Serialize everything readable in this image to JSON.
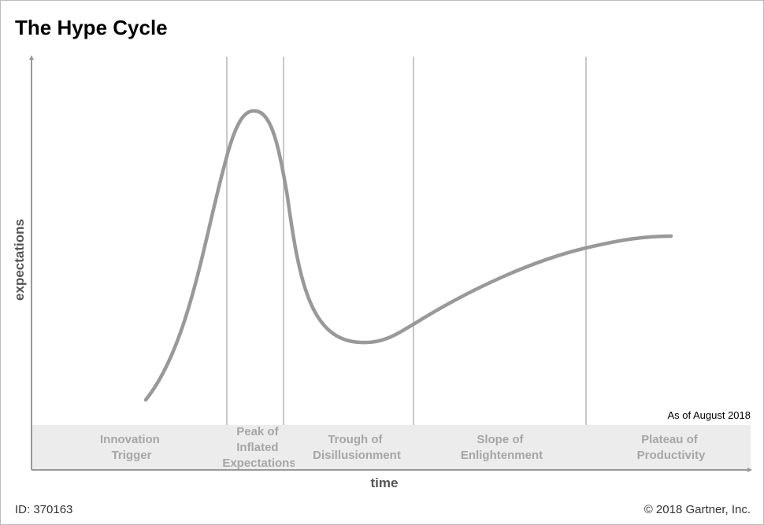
{
  "header": {
    "title": "The Hype Cycle"
  },
  "axes": {
    "y_label": "expectations",
    "x_label": "time"
  },
  "as_of": "As of August 2018",
  "phases": [
    {
      "lines": [
        "Innovation",
        "Trigger"
      ]
    },
    {
      "lines": [
        "Peak of",
        "Inflated",
        "Expectations"
      ]
    },
    {
      "lines": [
        "Trough of",
        "Disillusionment"
      ]
    },
    {
      "lines": [
        "Slope of",
        "Enlightenment"
      ]
    },
    {
      "lines": [
        "Plateau of",
        "Productivity"
      ]
    }
  ],
  "footer": {
    "id": "ID: 370163",
    "copyright": "© 2018 Gartner, Inc."
  }
}
